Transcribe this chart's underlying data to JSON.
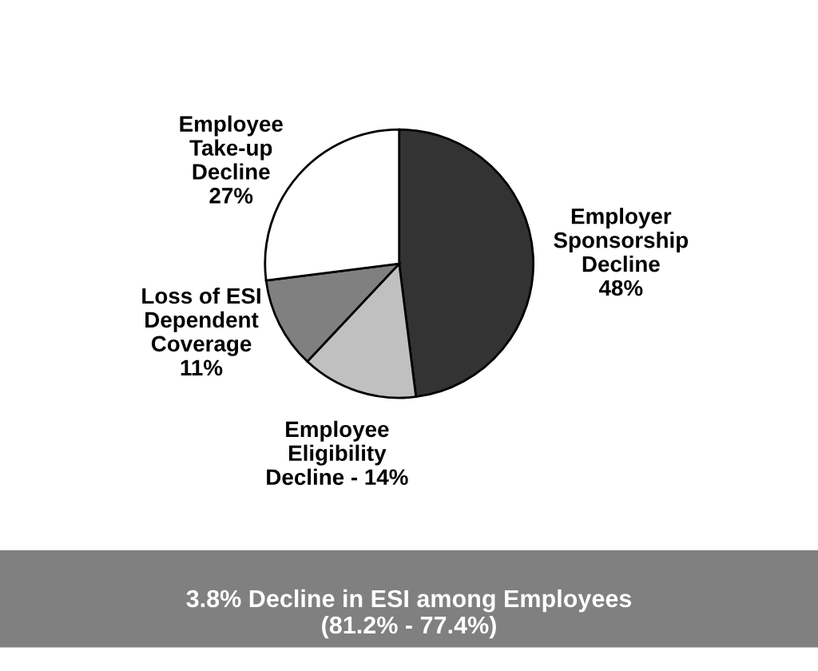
{
  "chart_data": {
    "type": "pie",
    "categories": [
      "Employer\nSponsorship\nDecline",
      "Employee\nEligibility\nDecline",
      "Loss of ESI\nDependent\nCoverage",
      "Employee\nTake-up\nDecline"
    ],
    "values": [
      48,
      14,
      11,
      27
    ],
    "value_labels": [
      "48%",
      "14%",
      "11%",
      "27%"
    ],
    "colors": [
      "#333333",
      "#c0c0c0",
      "#808080",
      "#ffffff"
    ],
    "annotations": [
      "3.8% Decline in ESI among Employees\n(81.2% - 77.4%)"
    ]
  }
}
